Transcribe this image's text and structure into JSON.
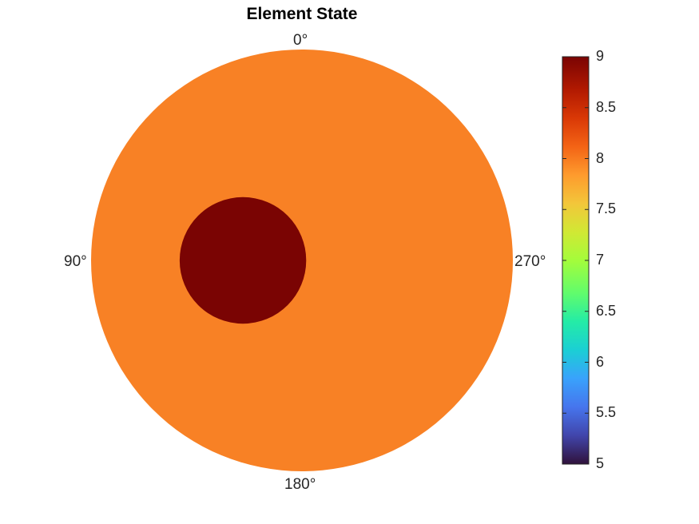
{
  "chart_data": {
    "type": "heatmap",
    "title": "Element State",
    "angular_labels": [
      "0°",
      "90°",
      "180°",
      "270°"
    ],
    "colorbar": {
      "min": 5,
      "max": 9,
      "ticks": [
        "5",
        "5.5",
        "6",
        "6.5",
        "7",
        "7.5",
        "8",
        "8.5",
        "9"
      ],
      "colormap": "turbo"
    },
    "regions": [
      {
        "shape": "disk",
        "value": 8,
        "color": "#f88125",
        "center": [
          0,
          0
        ],
        "radius": 1.0
      },
      {
        "shape": "disk",
        "value": 9,
        "color": "#7a0403",
        "center": [
          0.28,
          0.0
        ],
        "radius": 0.3
      }
    ]
  }
}
